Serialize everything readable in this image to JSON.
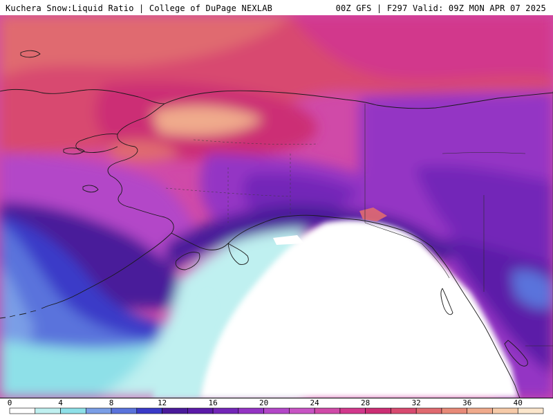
{
  "header": {
    "title_left": "Kuchera Snow:Liquid Ratio | College of DuPage NEXLAB",
    "title_right": "00Z GFS | F297 Valid: 09Z MON APR 07 2025"
  },
  "legend": {
    "min": 0,
    "max": 42,
    "tick_labels": [
      "0",
      "4",
      "8",
      "12",
      "16",
      "20",
      "24",
      "28",
      "32",
      "36",
      "40"
    ],
    "tick_values": [
      0,
      4,
      8,
      12,
      16,
      20,
      24,
      28,
      32,
      36,
      40
    ],
    "bins": [
      {
        "from": 0,
        "to": 2,
        "color": "#ffffff"
      },
      {
        "from": 2,
        "to": 4,
        "color": "#bff0f0"
      },
      {
        "from": 4,
        "to": 6,
        "color": "#8ee0e8"
      },
      {
        "from": 6,
        "to": 8,
        "color": "#7a9ee6"
      },
      {
        "from": 8,
        "to": 10,
        "color": "#5a73dc"
      },
      {
        "from": 10,
        "to": 12,
        "color": "#3a3ac8"
      },
      {
        "from": 12,
        "to": 14,
        "color": "#4a1a9a"
      },
      {
        "from": 14,
        "to": 16,
        "color": "#5b1aa8"
      },
      {
        "from": 16,
        "to": 18,
        "color": "#7326b8"
      },
      {
        "from": 18,
        "to": 20,
        "color": "#9434c4"
      },
      {
        "from": 20,
        "to": 22,
        "color": "#b347c8"
      },
      {
        "from": 22,
        "to": 24,
        "color": "#c854c4"
      },
      {
        "from": 24,
        "to": 26,
        "color": "#d04aa8"
      },
      {
        "from": 26,
        "to": 28,
        "color": "#d2388c"
      },
      {
        "from": 28,
        "to": 30,
        "color": "#cc2e74"
      },
      {
        "from": 30,
        "to": 32,
        "color": "#d84a70"
      },
      {
        "from": 32,
        "to": 34,
        "color": "#e06a70"
      },
      {
        "from": 34,
        "to": 36,
        "color": "#e88a78"
      },
      {
        "from": 36,
        "to": 38,
        "color": "#f0aa8c"
      },
      {
        "from": 38,
        "to": 40,
        "color": "#f6caa8"
      },
      {
        "from": 40,
        "to": 42,
        "color": "#fbe6cc"
      }
    ]
  }
}
